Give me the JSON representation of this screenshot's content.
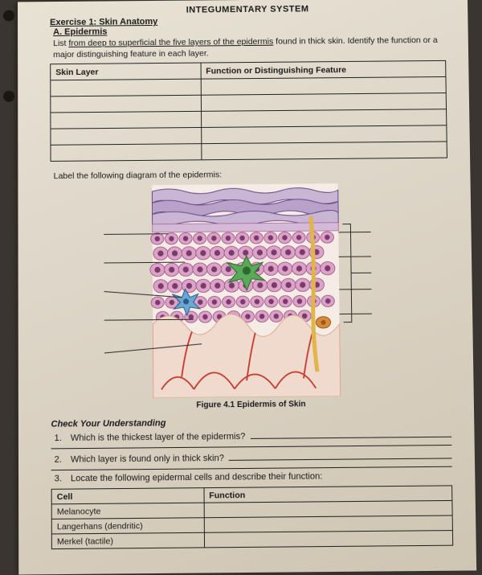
{
  "header": "INTEGUMENTARY SYSTEM",
  "exercise": "Exercise 1: Skin Anatomy",
  "sectionA": "A. Epidermis",
  "instruction_pre": "List ",
  "instruction_u": "from deep to superficial the five layers of the epidermis",
  "instruction_post": " found in thick skin. Identify the function or a major distinguishing feature in each layer.",
  "table1": {
    "col1": "Skin Layer",
    "col2": "Function or Distinguishing Feature"
  },
  "label_text": "Label the following diagram of the epidermis:",
  "caption": "Figure 4.1 Epidermis of Skin",
  "cyu": "Check Your Understanding",
  "q1_num": "1.",
  "q1": "Which is the thickest layer of the epidermis?",
  "q2_num": "2.",
  "q2": "Which layer is found only in thick skin?",
  "q3_num": "3.",
  "q3": "Locate the following epidermal cells and describe their function:",
  "table2": {
    "col1": "Cell",
    "col2": "Function",
    "r1": "Melanocyte",
    "r2": "Langerhans (dendritic)",
    "r3": "Merkel (tactile)"
  },
  "fig": {
    "bg": "#f5ece5",
    "corneum": "#c9b5d4",
    "corneum_stroke": "#6b4a8a",
    "cell_fill": "#dca3c9",
    "cell_stroke": "#9a4b7f",
    "nucleus": "#7a3a6a",
    "dermis": "#f0d9cd",
    "dermis_line": "#d9a98c",
    "vessel": "#c43a2e",
    "nerve": "#e0b54a",
    "melano": "#5aa85a",
    "melano_stroke": "#2a6a2a",
    "langer": "#6aa8d4",
    "langer_stroke": "#2a5a8a",
    "merkel": "#d98a3a",
    "label_line": "#2a2a2a"
  }
}
